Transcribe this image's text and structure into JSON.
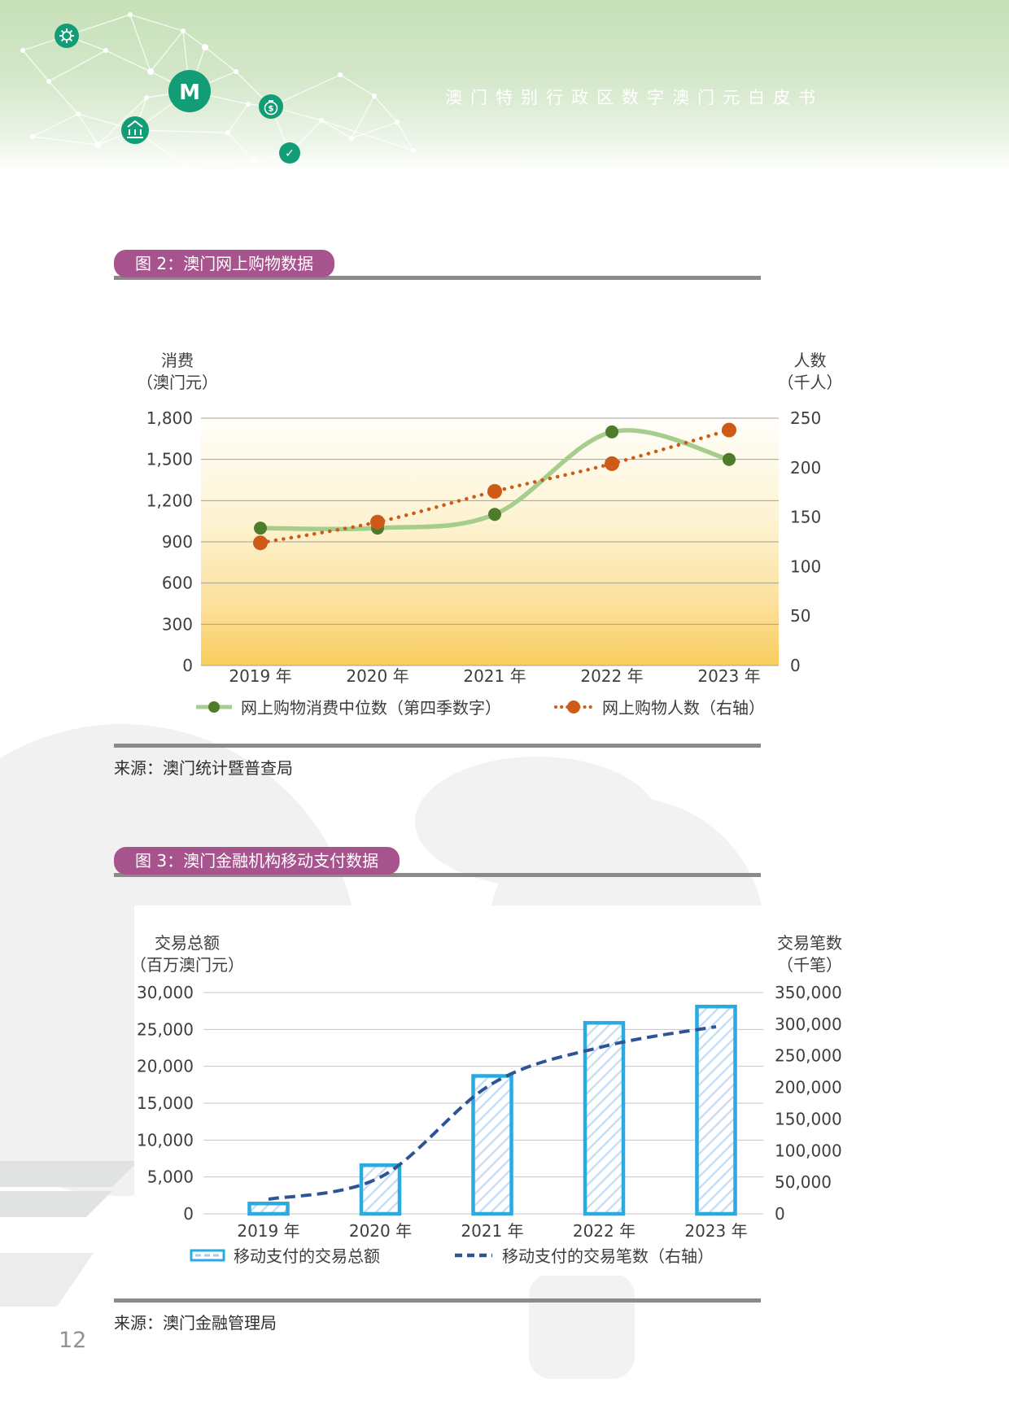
{
  "header": {
    "title": "澳门特别行政区数字澳门元白皮书",
    "icons": [
      {
        "name": "gear"
      },
      {
        "name": "macau-pataca-logo",
        "glyph": "M"
      },
      {
        "name": "money-bag",
        "glyph": "$"
      },
      {
        "name": "bank"
      },
      {
        "name": "check",
        "glyph": "✓"
      }
    ]
  },
  "page_number": "12",
  "figure2": {
    "badge": "图 2：澳门网上购物数据",
    "source": "来源：澳门统计暨普查局",
    "left_axis_title": [
      "消费",
      "（澳门元）"
    ],
    "right_axis_title": [
      "人数",
      "（千人）"
    ],
    "legend": [
      {
        "label": "网上购物消费中位数（第四季数字）"
      },
      {
        "label": "网上购物人数（右轴）"
      }
    ]
  },
  "figure3": {
    "badge": "图 3：澳门金融机构移动支付数据",
    "source": "来源：澳门金融管理局",
    "left_axis_title": [
      "交易总额",
      "（百万澳门元）"
    ],
    "right_axis_title": [
      "交易笔数",
      "（千笔）"
    ],
    "legend": [
      {
        "label": "移动支付的交易总额"
      },
      {
        "label": "移动支付的交易笔数（右轴）"
      }
    ]
  },
  "chart_data": [
    {
      "type": "line",
      "title": "图 2：澳门网上购物数据",
      "categories": [
        "2019 年",
        "2020 年",
        "2021 年",
        "2022 年",
        "2023 年"
      ],
      "series": [
        {
          "name": "网上购物消费中位数（第四季数字）",
          "axis": "left",
          "style": "solid",
          "color": "#a6cd8d",
          "marker_color": "#4d7c2b",
          "values": [
            1000,
            1000,
            1100,
            1700,
            1500
          ]
        },
        {
          "name": "网上购物人数（右轴）",
          "axis": "right",
          "style": "dotted",
          "color": "#cd5a17",
          "marker_color": "#cd5a17",
          "values": [
            124,
            145,
            176,
            204,
            238
          ]
        }
      ],
      "left_axis": {
        "label": "消费（澳门元）",
        "min": 0,
        "max": 1800,
        "step": 300
      },
      "right_axis": {
        "label": "人数（千人）",
        "min": 0,
        "max": 250,
        "step": 50
      },
      "grid": true,
      "legend_position": "bottom",
      "plot_background": "yellow-gradient"
    },
    {
      "type": "bar",
      "title": "图 3：澳门金融机构移动支付数据",
      "categories": [
        "2019 年",
        "2020 年",
        "2021 年",
        "2022 年",
        "2023 年"
      ],
      "series": [
        {
          "name": "移动支付的交易总额",
          "kind": "bar",
          "axis": "left",
          "color": "#29abe2",
          "hatch": "diagonal",
          "values": [
            1400,
            6600,
            18700,
            25900,
            28100
          ]
        },
        {
          "name": "移动支付的交易笔数（右轴）",
          "kind": "line",
          "style": "dashed",
          "axis": "right",
          "color": "#2f5496",
          "values": [
            23000,
            58000,
            206000,
            265000,
            296000
          ]
        }
      ],
      "left_axis": {
        "label": "交易总额（百万澳门元）",
        "min": 0,
        "max": 30000,
        "step": 5000
      },
      "right_axis": {
        "label": "交易笔数（千笔）",
        "min": 0,
        "max": 350000,
        "step": 50000
      },
      "grid": true,
      "legend_position": "bottom"
    }
  ],
  "colors": {
    "badge": "#a7538d",
    "rule_gray": "#8a8a8a",
    "gridline_chart1": "#a3a09a",
    "gridline_chart2": "#c6c6c6",
    "chart1_line_green": "#a6cd8d",
    "chart1_marker_green": "#4d7c2b",
    "chart1_orange": "#cd5a17",
    "chart2_bar_border": "#29abe2",
    "chart2_bar_hatch": "#c3dcf2",
    "chart2_line_navy": "#2f5496",
    "header_icon_green": "#139d77"
  }
}
